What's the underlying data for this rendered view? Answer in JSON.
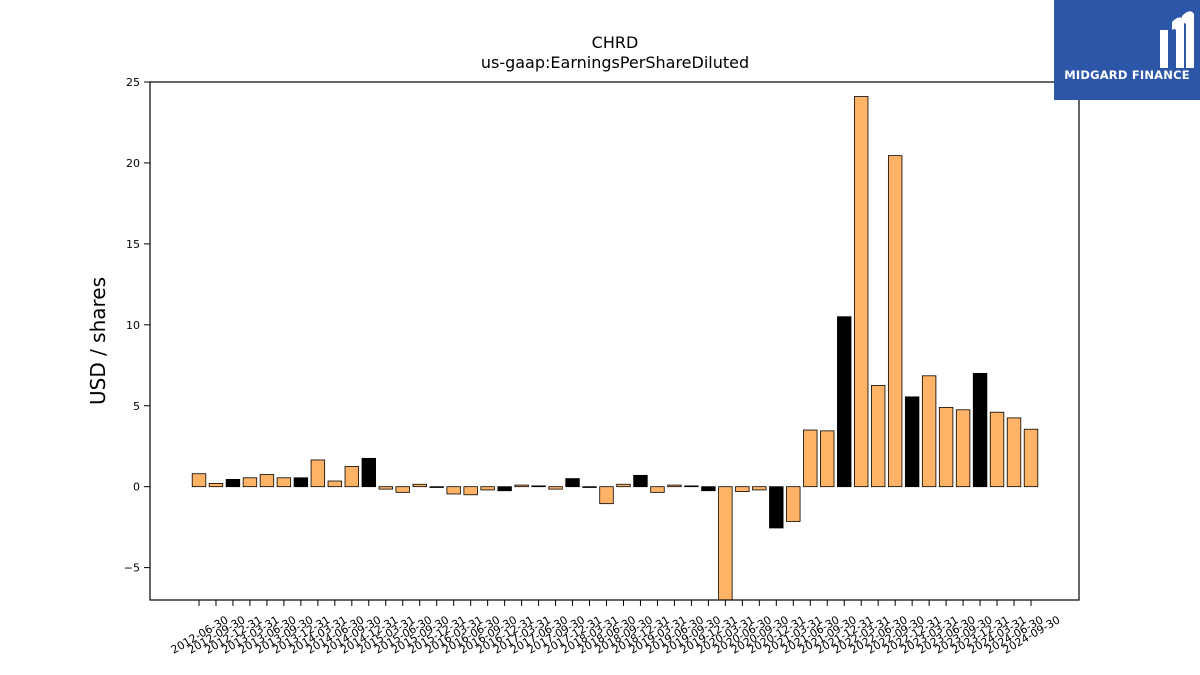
{
  "chart_data": {
    "type": "bar",
    "title": "CHRD",
    "subtitle": "us-gaap:EarningsPerShareDiluted",
    "ylabel": "USD / shares",
    "xlabel": "",
    "ylim": [
      -7,
      25
    ],
    "yticks": [
      25,
      20,
      15,
      10,
      5,
      0,
      -5
    ],
    "ytick_labels": [
      "25",
      "20",
      "15",
      "10",
      "5",
      "0",
      "−5"
    ],
    "colors": {
      "quarter": "#ffb366",
      "annual": "#000000"
    },
    "categories": [
      "2012-06-30",
      "2012-09-30",
      "2012-12-31",
      "2013-03-31",
      "2013-06-30",
      "2013-09-30",
      "2013-12-31",
      "2014-03-31",
      "2014-06-30",
      "2014-09-30",
      "2014-12-31",
      "2015-03-31",
      "2015-06-30",
      "2015-09-30",
      "2015-12-31",
      "2016-03-31",
      "2016-06-30",
      "2016-09-30",
      "2016-12-31",
      "2017-03-31",
      "2017-06-30",
      "2017-09-30",
      "2017-12-31",
      "2018-03-31",
      "2018-06-30",
      "2018-09-30",
      "2018-12-31",
      "2019-03-31",
      "2019-06-30",
      "2019-09-30",
      "2019-12-31",
      "2020-03-31",
      "2020-06-30",
      "2020-09-30",
      "2020-12-31",
      "2021-03-31",
      "2021-06-30",
      "2021-09-30",
      "2021-12-31",
      "2022-03-31",
      "2022-06-30",
      "2022-09-30",
      "2022-12-31",
      "2023-03-31",
      "2023-06-30",
      "2023-09-30",
      "2023-12-31",
      "2024-03-31",
      "2024-06-30",
      "2024-09-30"
    ],
    "values": [
      0.8,
      0.2,
      0.45,
      0.55,
      0.75,
      0.55,
      0.55,
      1.65,
      0.35,
      1.25,
      1.75,
      -0.15,
      -0.35,
      0.15,
      -0.05,
      -0.45,
      -0.5,
      -0.2,
      -0.25,
      0.1,
      0.05,
      -0.15,
      0.5,
      -0.05,
      -1.05,
      0.15,
      0.7,
      -0.35,
      0.1,
      0.05,
      -0.25,
      -7.1,
      -0.3,
      -0.2,
      -2.55,
      -2.15,
      3.5,
      3.45,
      10.5,
      24.1,
      6.25,
      20.45,
      5.55,
      6.85,
      4.9,
      4.75,
      7.0,
      4.6,
      4.25,
      3.55
    ],
    "highlight": [
      false,
      false,
      true,
      false,
      false,
      false,
      true,
      false,
      false,
      false,
      true,
      false,
      false,
      false,
      false,
      false,
      false,
      false,
      true,
      false,
      false,
      false,
      true,
      false,
      false,
      false,
      true,
      false,
      false,
      false,
      true,
      false,
      false,
      false,
      true,
      false,
      false,
      false,
      true,
      false,
      false,
      false,
      true,
      false,
      false,
      false,
      true,
      false,
      false,
      false
    ]
  },
  "logo": {
    "text": "MIDGARD FINANCE"
  }
}
